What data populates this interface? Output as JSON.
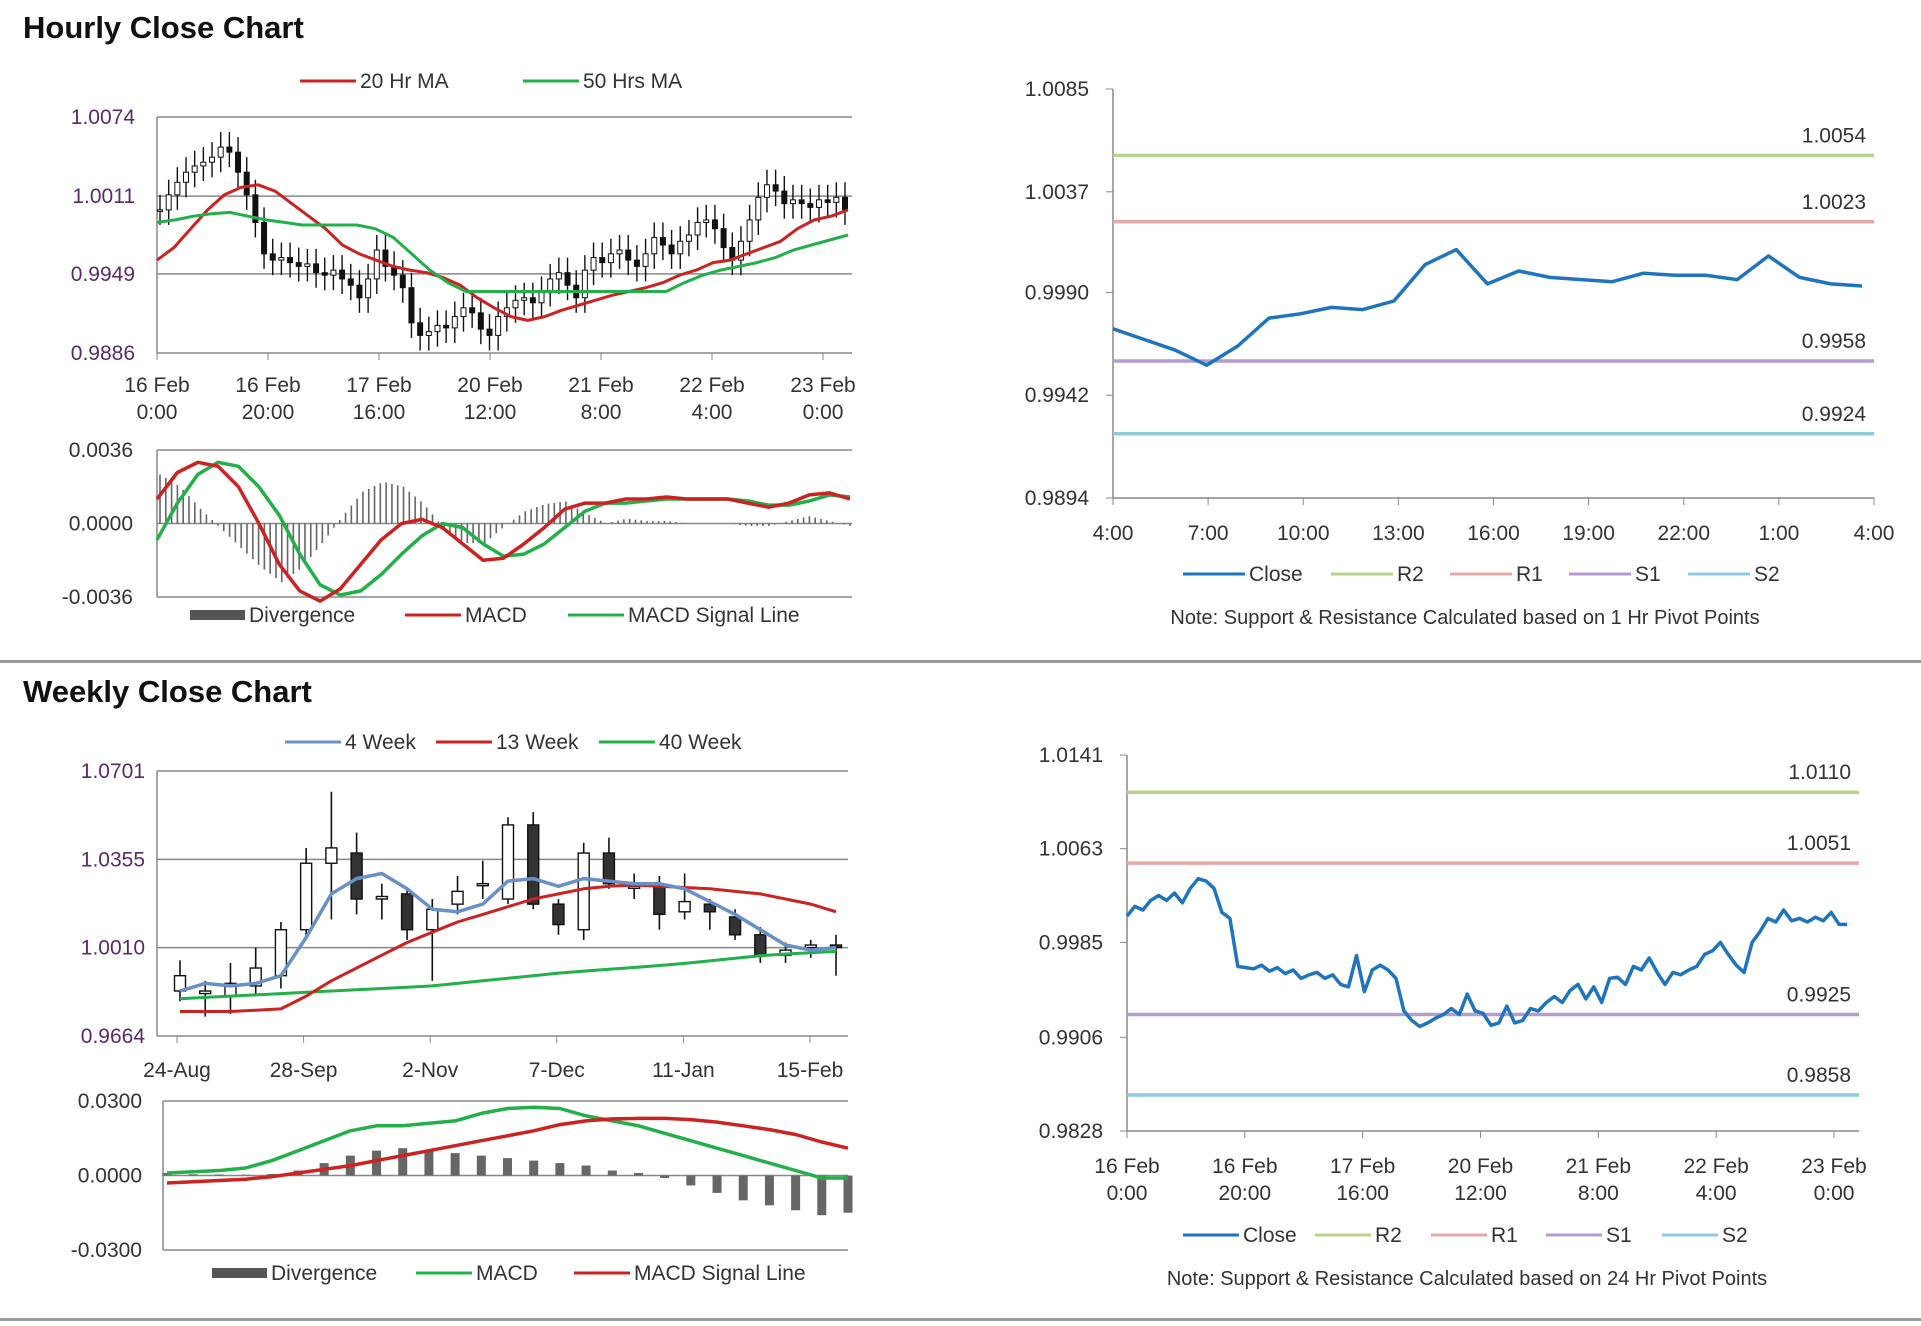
{
  "sections": [
    {
      "title": "Hourly Close Chart"
    },
    {
      "title": "Weekly Close Chart"
    }
  ],
  "colors": {
    "ma_red": "#cc2222",
    "ma_green": "#22b04a",
    "ma_blue": "#6a90c8",
    "close_blue": "#1f74c0",
    "r2": "#b8d48a",
    "r1": "#e8a8a8",
    "s1": "#b49cd0",
    "s2": "#8ccbe0",
    "divergence": "#555555",
    "grid": "#888888"
  },
  "chart_data": [
    {
      "id": "hourly_price",
      "type": "candlestick",
      "xlabels": [
        "16 Feb\n0:00",
        "16 Feb\n20:00",
        "17 Feb\n16:00",
        "20 Feb\n12:00",
        "21 Feb\n8:00",
        "22 Feb\n4:00",
        "23 Feb\n0:00"
      ],
      "yticks": [
        "1.0074",
        "1.0011",
        "0.9949",
        "0.9886"
      ],
      "ylim": [
        0.9886,
        1.0074
      ],
      "legend": [
        "20 Hr MA",
        "50 Hrs MA"
      ],
      "close": [
        1.0,
        1.0012,
        1.0022,
        1.003,
        1.0035,
        1.0038,
        1.0042,
        1.005,
        1.0046,
        1.003,
        1.0012,
        0.999,
        0.9965,
        0.996,
        0.9962,
        0.9958,
        0.9955,
        0.9957,
        0.995,
        0.9948,
        0.9952,
        0.9945,
        0.994,
        0.993,
        0.9945,
        0.9968,
        0.9955,
        0.9948,
        0.9938,
        0.991,
        0.99,
        0.9903,
        0.9908,
        0.9906,
        0.9915,
        0.9922,
        0.9918,
        0.9905,
        0.99,
        0.9915,
        0.9922,
        0.9928,
        0.993,
        0.9926,
        0.9935,
        0.9945,
        0.995,
        0.994,
        0.993,
        0.9952,
        0.9962,
        0.9958,
        0.9965,
        0.9968,
        0.996,
        0.9955,
        0.9965,
        0.9978,
        0.9972,
        0.9965,
        0.9975,
        0.998,
        0.999,
        0.9992,
        0.9985,
        0.997,
        0.996,
        0.9975,
        0.9992,
        1.001,
        1.002,
        1.0015,
        1.0005,
        1.0008,
        1.0005,
        1.0002,
        1.0008,
        1.0006,
        1.001,
        1.0
      ],
      "ma20": [
        0.996,
        0.997,
        0.9985,
        1.0,
        1.0012,
        1.0018,
        1.002,
        1.0015,
        1.0005,
        0.9995,
        0.9985,
        0.9972,
        0.9965,
        0.996,
        0.9955,
        0.9952,
        0.995,
        0.9946,
        0.994,
        0.993,
        0.9922,
        0.9915,
        0.9912,
        0.9915,
        0.992,
        0.9924,
        0.9928,
        0.9932,
        0.9935,
        0.9938,
        0.9942,
        0.9948,
        0.9952,
        0.9958,
        0.996,
        0.9965,
        0.997,
        0.9975,
        0.9985,
        0.9992,
        0.9995,
        1.0
      ],
      "ma50": [
        0.999,
        0.9992,
        0.9995,
        0.9997,
        0.9998,
        0.9995,
        0.9992,
        0.999,
        0.9988,
        0.9988,
        0.9988,
        0.9988,
        0.9985,
        0.9978,
        0.9965,
        0.9952,
        0.9942,
        0.9935,
        0.9935,
        0.9935,
        0.9935,
        0.9935,
        0.9935,
        0.9935,
        0.9935,
        0.9935,
        0.9935,
        0.9935,
        0.9935,
        0.9942,
        0.9948,
        0.9952,
        0.9955,
        0.9958,
        0.9962,
        0.9968,
        0.9972,
        0.9976,
        0.998
      ]
    },
    {
      "id": "hourly_macd",
      "type": "line",
      "yticks": [
        "0.0036",
        "0.0000",
        "-0.0036"
      ],
      "ylim": [
        -0.0036,
        0.0036
      ],
      "legend": [
        "Divergence",
        "MACD",
        "MACD Signal Line"
      ],
      "macd": [
        0.0012,
        0.0025,
        0.003,
        0.0028,
        0.0018,
        0.0,
        -0.002,
        -0.0033,
        -0.0038,
        -0.0032,
        -0.002,
        -0.0008,
        0.0,
        0.0002,
        -0.0002,
        -0.001,
        -0.0018,
        -0.0017,
        -0.001,
        -0.0002,
        0.0007,
        0.001,
        0.001,
        0.0012,
        0.0012,
        0.0013,
        0.0012,
        0.0012,
        0.0012,
        0.001,
        0.0008,
        0.001,
        0.0014,
        0.0015,
        0.0012
      ],
      "signal": [
        -0.0008,
        0.001,
        0.0024,
        0.003,
        0.0028,
        0.0018,
        0.0004,
        -0.0015,
        -0.003,
        -0.0035,
        -0.0033,
        -0.0025,
        -0.0015,
        -0.0006,
        0.0,
        -0.0002,
        -0.001,
        -0.0016,
        -0.0015,
        -0.001,
        -0.0002,
        0.0006,
        0.001,
        0.001,
        0.0011,
        0.0012,
        0.0012,
        0.0012,
        0.0012,
        0.0011,
        0.0009,
        0.0009,
        0.0011,
        0.0014,
        0.0013
      ]
    },
    {
      "id": "hourly_pivot",
      "type": "line",
      "xlabels": [
        "4:00",
        "7:00",
        "10:00",
        "13:00",
        "16:00",
        "19:00",
        "22:00",
        "1:00",
        "4:00"
      ],
      "yticks": [
        "1.0085",
        "1.0037",
        "0.9990",
        "0.9942",
        "0.9894"
      ],
      "ylim": [
        0.9894,
        1.0085
      ],
      "levels": {
        "R2": 1.0054,
        "R1": 1.0023,
        "S1": 0.9958,
        "S2": 0.9924
      },
      "level_labels": [
        "1.0054",
        "1.0023",
        "0.9958",
        "0.9924"
      ],
      "legend": [
        "Close",
        "R2",
        "R1",
        "S1",
        "S2"
      ],
      "note": "Note: Support & Resistance Calculated based on 1 Hr Pivot Points",
      "close": [
        0.9973,
        0.9968,
        0.9963,
        0.9956,
        0.9965,
        0.9978,
        0.998,
        0.9983,
        0.9982,
        0.9986,
        1.0003,
        1.001,
        0.9994,
        1.0,
        0.9997,
        0.9996,
        0.9995,
        0.9999,
        0.9998,
        0.9998,
        0.9996,
        1.0007,
        0.9997,
        0.9994,
        0.9993
      ]
    },
    {
      "id": "weekly_price",
      "type": "candlestick",
      "xlabels": [
        "24-Aug",
        "28-Sep",
        "2-Nov",
        "7-Dec",
        "11-Jan",
        "15-Feb"
      ],
      "yticks": [
        "1.0701",
        "1.0355",
        "1.0010",
        "0.9664"
      ],
      "ylim": [
        0.9664,
        1.0701
      ],
      "legend": [
        "4 Week",
        "13 Week",
        "40 Week"
      ],
      "candles": [
        [
          0.984,
          0.99,
          0.98,
          0.996
        ],
        [
          0.983,
          0.984,
          0.974,
          0.988
        ],
        [
          0.982,
          0.987,
          0.975,
          0.995
        ],
        [
          0.986,
          0.993,
          0.982,
          1.001
        ],
        [
          0.99,
          1.008,
          0.985,
          1.011
        ],
        [
          1.008,
          1.034,
          1.004,
          1.04
        ],
        [
          1.034,
          1.04,
          1.012,
          1.062
        ],
        [
          1.038,
          1.02,
          1.014,
          1.046
        ],
        [
          1.02,
          1.021,
          1.012,
          1.026
        ],
        [
          1.022,
          1.008,
          1.004,
          1.024
        ],
        [
          1.008,
          1.016,
          0.988,
          1.02
        ],
        [
          1.018,
          1.023,
          1.014,
          1.029
        ],
        [
          1.026,
          1.026,
          1.02,
          1.035
        ],
        [
          1.02,
          1.049,
          1.018,
          1.052
        ],
        [
          1.049,
          1.018,
          1.016,
          1.054
        ],
        [
          1.018,
          1.01,
          1.006,
          1.02
        ],
        [
          1.008,
          1.038,
          1.004,
          1.042
        ],
        [
          1.038,
          1.026,
          1.024,
          1.044
        ],
        [
          1.025,
          1.025,
          1.02,
          1.03
        ],
        [
          1.025,
          1.014,
          1.008,
          1.029
        ],
        [
          1.015,
          1.019,
          1.012,
          1.03
        ],
        [
          1.018,
          1.015,
          1.008,
          1.02
        ],
        [
          1.013,
          1.006,
          1.004,
          1.016
        ],
        [
          1.006,
          0.998,
          0.995,
          1.009
        ],
        [
          0.998,
          1.0,
          0.995,
          1.003
        ],
        [
          1.001,
          1.002,
          0.997,
          1.004
        ],
        [
          1.002,
          1.001,
          0.99,
          1.006
        ]
      ],
      "ma4": [
        0.984,
        0.987,
        0.986,
        0.987,
        0.99,
        1.005,
        1.022,
        1.028,
        1.03,
        1.024,
        1.016,
        1.015,
        1.018,
        1.027,
        1.028,
        1.025,
        1.028,
        1.027,
        1.026,
        1.026,
        1.024,
        1.019,
        1.014,
        1.008,
        1.002,
        1.0,
        1.001
      ],
      "ma13": [
        0.976,
        0.976,
        0.976,
        0.9765,
        0.977,
        0.982,
        0.988,
        0.993,
        0.998,
        1.003,
        1.007,
        1.011,
        1.014,
        1.017,
        1.02,
        1.022,
        1.024,
        1.025,
        1.0255,
        1.025,
        1.0245,
        1.024,
        1.023,
        1.022,
        1.02,
        1.018,
        1.015
      ],
      "ma40": [
        0.981,
        0.9815,
        0.982,
        0.9825,
        0.983,
        0.9835,
        0.984,
        0.9845,
        0.985,
        0.9855,
        0.986,
        0.987,
        0.988,
        0.989,
        0.99,
        0.991,
        0.9918,
        0.9925,
        0.9932,
        0.994,
        0.9948,
        0.9958,
        0.9968,
        0.9978,
        0.9985,
        0.999,
        0.9995
      ]
    },
    {
      "id": "weekly_macd",
      "type": "line",
      "yticks": [
        "0.0300",
        "0.0000",
        "-0.0300"
      ],
      "ylim": [
        -0.03,
        0.03
      ],
      "legend": [
        "Divergence",
        "MACD",
        "MACD Signal Line"
      ],
      "divergence": [
        0.001,
        0.0005,
        0.0004,
        0.0003,
        0.0006,
        0.002,
        0.005,
        0.008,
        0.01,
        0.011,
        0.01,
        0.009,
        0.008,
        0.007,
        0.006,
        0.005,
        0.004,
        0.002,
        0.001,
        -0.001,
        -0.004,
        -0.007,
        -0.01,
        -0.012,
        -0.014,
        -0.016,
        -0.015
      ],
      "macd": [
        0.001,
        0.0015,
        0.002,
        0.003,
        0.006,
        0.01,
        0.014,
        0.018,
        0.02,
        0.02,
        0.021,
        0.022,
        0.025,
        0.027,
        0.0275,
        0.027,
        0.024,
        0.022,
        0.02,
        0.017,
        0.014,
        0.011,
        0.008,
        0.005,
        0.002,
        -0.001,
        -0.001
      ],
      "signal": [
        -0.003,
        -0.0025,
        -0.002,
        -0.0015,
        -0.0005,
        0.001,
        0.0025,
        0.004,
        0.006,
        0.008,
        0.01,
        0.012,
        0.014,
        0.016,
        0.018,
        0.0205,
        0.022,
        0.0228,
        0.023,
        0.023,
        0.0225,
        0.0215,
        0.02,
        0.0185,
        0.0165,
        0.0135,
        0.011
      ]
    },
    {
      "id": "weekly_pivot",
      "type": "line",
      "xlabels": [
        "16 Feb\n0:00",
        "16 Feb\n20:00",
        "17 Feb\n16:00",
        "20 Feb\n12:00",
        "21 Feb\n8:00",
        "22 Feb\n4:00",
        "23 Feb\n0:00"
      ],
      "yticks": [
        "1.0141",
        "1.0063",
        "0.9985",
        "0.9906",
        "0.9828"
      ],
      "ylim": [
        0.9828,
        1.0141
      ],
      "levels": {
        "R2": 1.011,
        "R1": 1.0051,
        "S1": 0.9925,
        "S2": 0.9858
      },
      "level_labels": [
        "1.0110",
        "1.0051",
        "0.9925",
        "0.9858"
      ],
      "legend": [
        "Close",
        "R2",
        "R1",
        "S1",
        "S2"
      ],
      "note": "Note: Support & Resistance Calculated based on 24 Hr Pivot Points",
      "close": [
        1.0007,
        1.0015,
        1.0012,
        1.002,
        1.0024,
        1.002,
        1.0026,
        1.0018,
        1.003,
        1.0038,
        1.0036,
        1.003,
        1.001,
        1.0005,
        0.9965,
        0.9964,
        0.9963,
        0.9966,
        0.9961,
        0.9964,
        0.9959,
        0.9962,
        0.9955,
        0.9958,
        0.996,
        0.9955,
        0.9958,
        0.995,
        0.9948,
        0.9974,
        0.9944,
        0.9962,
        0.9966,
        0.9962,
        0.9955,
        0.9928,
        0.992,
        0.9915,
        0.9918,
        0.9922,
        0.9925,
        0.993,
        0.9925,
        0.9942,
        0.9928,
        0.9926,
        0.9916,
        0.9918,
        0.9932,
        0.9918,
        0.992,
        0.993,
        0.9928,
        0.9935,
        0.994,
        0.9935,
        0.9945,
        0.995,
        0.9938,
        0.9948,
        0.9935,
        0.9955,
        0.9956,
        0.995,
        0.9965,
        0.9962,
        0.9972,
        0.996,
        0.995,
        0.996,
        0.9958,
        0.9962,
        0.9965,
        0.9975,
        0.9978,
        0.9985,
        0.9975,
        0.9966,
        0.996,
        0.9985,
        0.9994,
        1.0005,
        1.0002,
        1.0012,
        1.0003,
        1.0005,
        1.0002,
        1.0006,
        1.0003,
        1.001,
        1.0,
        1.0
      ]
    }
  ]
}
